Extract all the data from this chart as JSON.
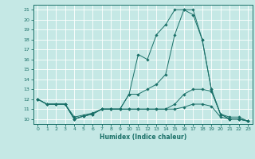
{
  "title": "",
  "xlabel": "Humidex (Indice chaleur)",
  "xlim": [
    -0.5,
    23.5
  ],
  "ylim": [
    9.5,
    21.5
  ],
  "yticks": [
    10,
    11,
    12,
    13,
    14,
    15,
    16,
    17,
    18,
    19,
    20,
    21
  ],
  "xticks": [
    0,
    1,
    2,
    3,
    4,
    5,
    6,
    7,
    8,
    9,
    10,
    11,
    12,
    13,
    14,
    15,
    16,
    17,
    18,
    19,
    20,
    21,
    22,
    23
  ],
  "bg_color": "#c5e8e5",
  "line_color": "#1a7068",
  "grid_color": "#ffffff",
  "series1": {
    "x": [
      0,
      1,
      2,
      3,
      4,
      5,
      6,
      7,
      8,
      9,
      10,
      11,
      12,
      13,
      14,
      15,
      16,
      17,
      18,
      19,
      20,
      21,
      22,
      23
    ],
    "y": [
      12,
      11.5,
      11.5,
      11.5,
      10.0,
      10.3,
      10.5,
      11.0,
      11.0,
      11.0,
      12.5,
      16.5,
      16.0,
      18.5,
      19.5,
      21.0,
      21.0,
      20.5,
      18.0,
      13.0,
      10.5,
      10.0,
      10.0,
      9.8
    ]
  },
  "series2": {
    "x": [
      0,
      1,
      2,
      3,
      4,
      5,
      6,
      7,
      8,
      9,
      10,
      11,
      12,
      13,
      14,
      15,
      16,
      17,
      18,
      19,
      20,
      21,
      22,
      23
    ],
    "y": [
      12,
      11.5,
      11.5,
      11.5,
      10.0,
      10.3,
      10.5,
      11.0,
      11.0,
      11.0,
      12.5,
      12.5,
      13.0,
      13.5,
      14.5,
      18.5,
      21.0,
      21.0,
      18.0,
      13.0,
      10.5,
      10.0,
      10.0,
      9.8
    ]
  },
  "series3": {
    "x": [
      0,
      1,
      2,
      3,
      4,
      5,
      6,
      7,
      8,
      9,
      10,
      11,
      12,
      13,
      14,
      15,
      16,
      17,
      18,
      19,
      20,
      21,
      22,
      23
    ],
    "y": [
      12,
      11.5,
      11.5,
      11.5,
      10.0,
      10.3,
      10.5,
      11.0,
      11.0,
      11.0,
      11.0,
      11.0,
      11.0,
      11.0,
      11.0,
      11.5,
      12.5,
      13.0,
      13.0,
      12.8,
      10.5,
      10.2,
      10.2,
      9.8
    ]
  },
  "series4": {
    "x": [
      0,
      1,
      2,
      3,
      4,
      5,
      6,
      7,
      8,
      9,
      10,
      11,
      12,
      13,
      14,
      15,
      16,
      17,
      18,
      19,
      20,
      21,
      22,
      23
    ],
    "y": [
      12,
      11.5,
      11.5,
      11.5,
      10.2,
      10.4,
      10.6,
      11.0,
      11.0,
      11.0,
      11.0,
      11.0,
      11.0,
      11.0,
      11.0,
      11.0,
      11.2,
      11.5,
      11.5,
      11.3,
      10.2,
      10.0,
      10.0,
      9.8
    ]
  }
}
